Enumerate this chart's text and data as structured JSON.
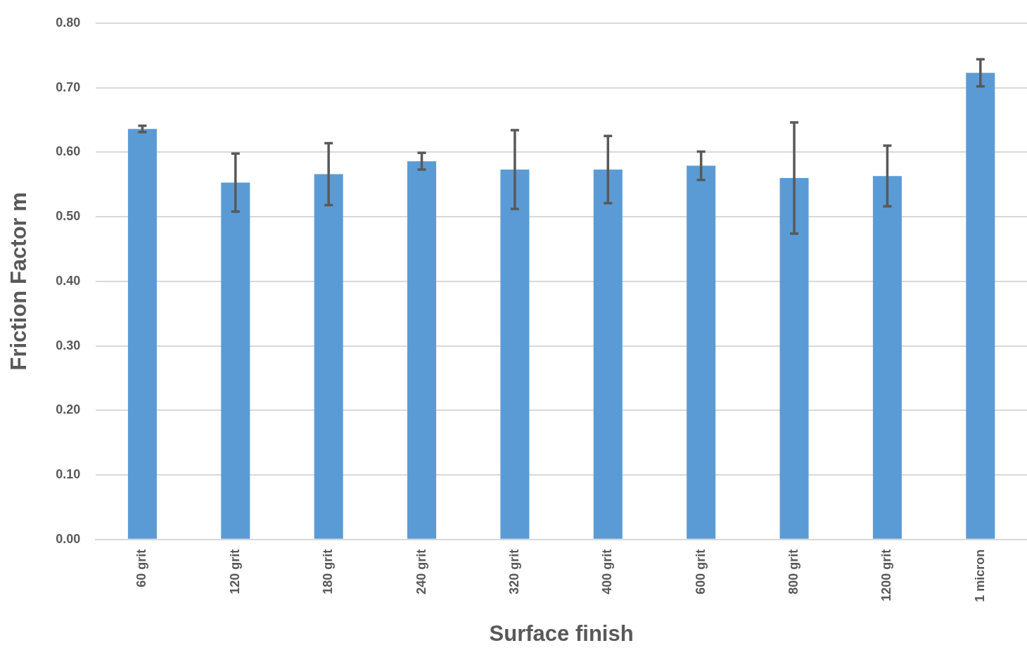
{
  "chart_data": {
    "type": "bar",
    "xlabel": "Surface finish",
    "ylabel": "Friction Factor m",
    "categories": [
      "60 grit",
      "120 grit",
      "180 grit",
      "240 grit",
      "320 grit",
      "400 grit",
      "600 grit",
      "800 grit",
      "1200 grit",
      "1 micron"
    ],
    "values": [
      0.636,
      0.553,
      0.566,
      0.586,
      0.573,
      0.573,
      0.579,
      0.56,
      0.563,
      0.723
    ],
    "errors": [
      0.005,
      0.045,
      0.048,
      0.013,
      0.061,
      0.052,
      0.022,
      0.086,
      0.047,
      0.021
    ],
    "color": "#5b9bd5",
    "ylim": [
      0,
      0.8
    ],
    "yticks": [
      {
        "value": 0,
        "label": "0.00"
      },
      {
        "value": 0.1,
        "label": "0.10"
      },
      {
        "value": 0.2,
        "label": "0.20"
      },
      {
        "value": 0.3,
        "label": "0.30"
      },
      {
        "value": 0.4,
        "label": "0.40"
      },
      {
        "value": 0.5,
        "label": "0.50"
      },
      {
        "value": 0.6,
        "label": "0.60"
      },
      {
        "value": 0.7,
        "label": "0.70"
      },
      {
        "value": 0.8,
        "label": "0.80"
      }
    ],
    "grid": "y",
    "legend": false
  }
}
